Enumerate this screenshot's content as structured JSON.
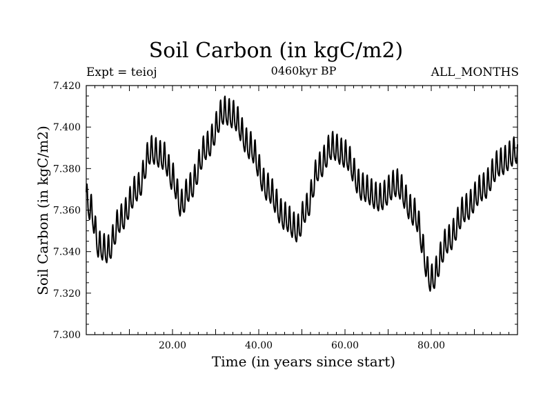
{
  "chart_data": {
    "type": "line",
    "title": "Soil Carbon (in kgC/m2)",
    "subtitle": "0460kyr BP",
    "experiment_label": "Expt = teioj",
    "period_label": "ALL_MONTHS",
    "xlabel": "Time (in years since start)",
    "ylabel": "Soil Carbon (in kgC/m2)",
    "xlim": [
      0,
      100
    ],
    "ylim": [
      7.3,
      7.42
    ],
    "x_ticks": [
      "20.00",
      "40.00",
      "60.00",
      "80.00"
    ],
    "x_tick_values": [
      20,
      40,
      60,
      80
    ],
    "y_ticks": [
      "7.300",
      "7.320",
      "7.340",
      "7.360",
      "7.380",
      "7.400",
      "7.420"
    ],
    "y_tick_values": [
      7.3,
      7.32,
      7.34,
      7.36,
      7.38,
      7.4,
      7.42
    ],
    "seasonal_amplitude": 0.0065,
    "trend_points": {
      "x": [
        0,
        1,
        3,
        5,
        8,
        12,
        15,
        18,
        20,
        22,
        24,
        28,
        32,
        34,
        38,
        42,
        46,
        49,
        51,
        54,
        57,
        60,
        64,
        68,
        72,
        76,
        80,
        84,
        88,
        92,
        96,
        100
      ],
      "y": [
        7.365,
        7.36,
        7.342,
        7.34,
        7.355,
        7.37,
        7.388,
        7.385,
        7.375,
        7.362,
        7.37,
        7.39,
        7.407,
        7.405,
        7.39,
        7.37,
        7.356,
        7.35,
        7.36,
        7.38,
        7.39,
        7.386,
        7.37,
        7.365,
        7.372,
        7.358,
        7.326,
        7.345,
        7.36,
        7.37,
        7.382,
        7.388
      ]
    }
  }
}
